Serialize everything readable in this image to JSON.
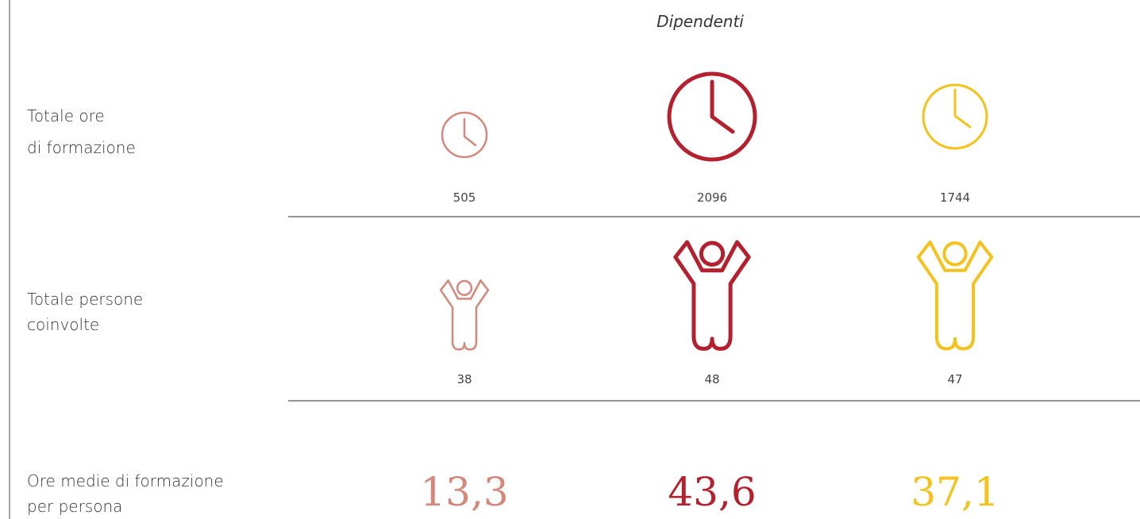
{
  "header": {
    "title": "Dipendenti"
  },
  "rows": [
    {
      "label_lines": [
        "Totale ore",
        "di formazione"
      ],
      "values": [
        "505",
        "2096",
        "1744"
      ]
    },
    {
      "label_lines": [
        "Totale persone",
        "coinvolte"
      ],
      "values": [
        "38",
        "48",
        "47"
      ]
    },
    {
      "label_lines": [
        "Ore medie di formazione",
        "per persona"
      ],
      "values": [
        "13,3",
        "43,6",
        "37,1"
      ]
    }
  ]
}
